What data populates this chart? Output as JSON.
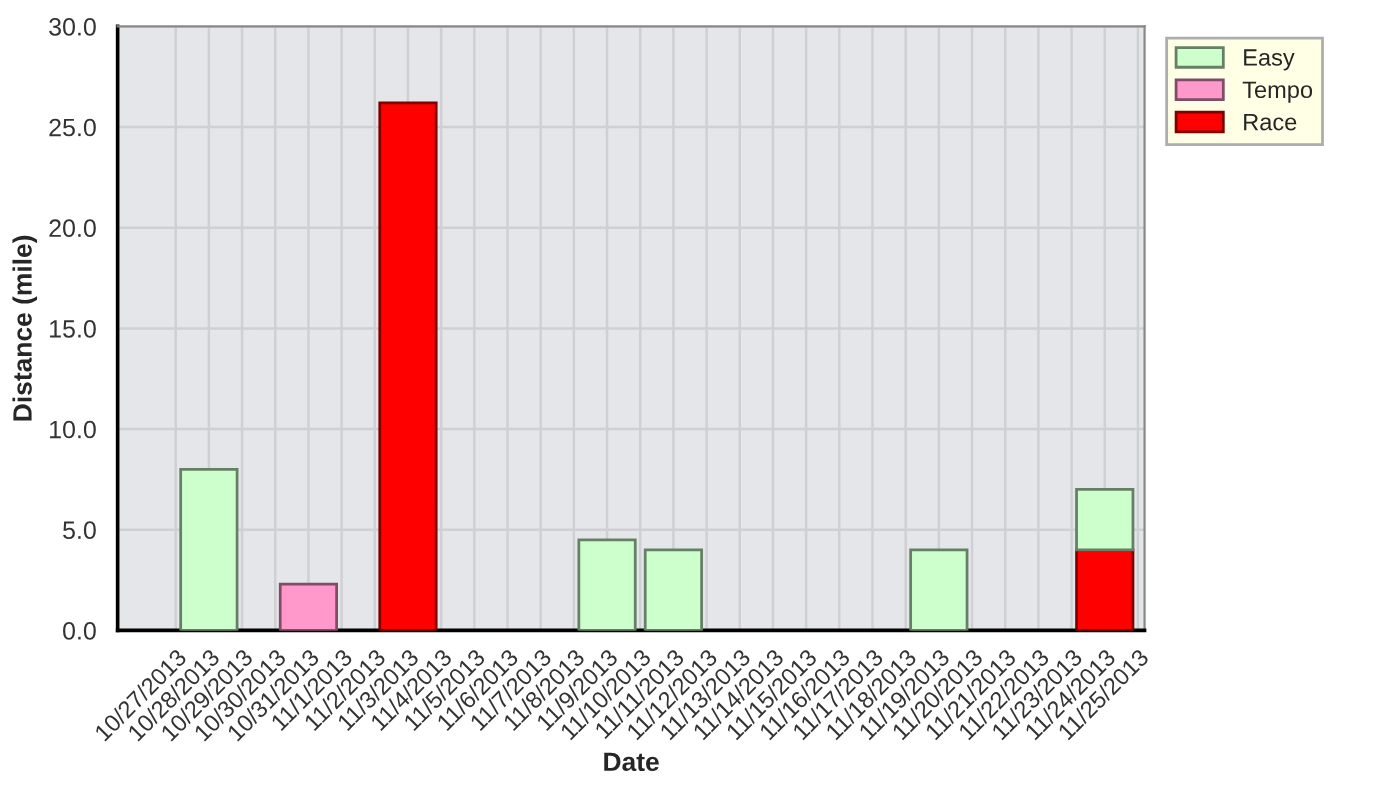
{
  "chart_data": {
    "type": "bar",
    "stacked": true,
    "xlabel": "Date",
    "ylabel": "Distance (mile)",
    "categories": [
      "10/27/2013",
      "10/28/2013",
      "10/29/2013",
      "10/30/2013",
      "10/31/2013",
      "11/1/2013",
      "11/2/2013",
      "11/3/2013",
      "11/4/2013",
      "11/5/2013",
      "11/6/2013",
      "11/7/2013",
      "11/8/2013",
      "11/9/2013",
      "11/10/2013",
      "11/11/2013",
      "11/12/2013",
      "11/13/2013",
      "11/14/2013",
      "11/15/2013",
      "11/16/2013",
      "11/17/2013",
      "11/18/2013",
      "11/19/2013",
      "11/20/2013",
      "11/21/2013",
      "11/22/2013",
      "11/23/2013",
      "11/24/2013",
      "11/25/2013"
    ],
    "series": [
      {
        "name": "Race",
        "color": "#ff0000",
        "values": [
          null,
          null,
          null,
          null,
          null,
          null,
          null,
          26.2,
          null,
          null,
          null,
          null,
          null,
          null,
          null,
          null,
          null,
          null,
          null,
          null,
          null,
          null,
          null,
          null,
          null,
          null,
          null,
          null,
          4.0,
          null
        ]
      },
      {
        "name": "Tempo",
        "color": "#ff99cc",
        "values": [
          null,
          null,
          null,
          null,
          2.3,
          null,
          null,
          null,
          null,
          null,
          null,
          null,
          null,
          null,
          null,
          null,
          null,
          null,
          null,
          null,
          null,
          null,
          null,
          null,
          null,
          null,
          null,
          null,
          null,
          null
        ]
      },
      {
        "name": "Easy",
        "color": "#ccffcc",
        "values": [
          null,
          8.0,
          null,
          null,
          null,
          null,
          null,
          null,
          null,
          null,
          null,
          null,
          null,
          4.5,
          null,
          4.0,
          null,
          null,
          null,
          null,
          null,
          null,
          null,
          4.0,
          null,
          null,
          null,
          null,
          3.0,
          null
        ]
      }
    ],
    "ylim": [
      0,
      30
    ],
    "yticks": [
      {
        "value": 0,
        "label": "0.0"
      },
      {
        "value": 5,
        "label": "5.0"
      },
      {
        "value": 10,
        "label": "10.0"
      },
      {
        "value": 15,
        "label": "15.0"
      },
      {
        "value": 20,
        "label": "20.0"
      },
      {
        "value": 25,
        "label": "25.0"
      },
      {
        "value": 30,
        "label": "30.0"
      }
    ],
    "grid": true,
    "legend": "top right"
  }
}
